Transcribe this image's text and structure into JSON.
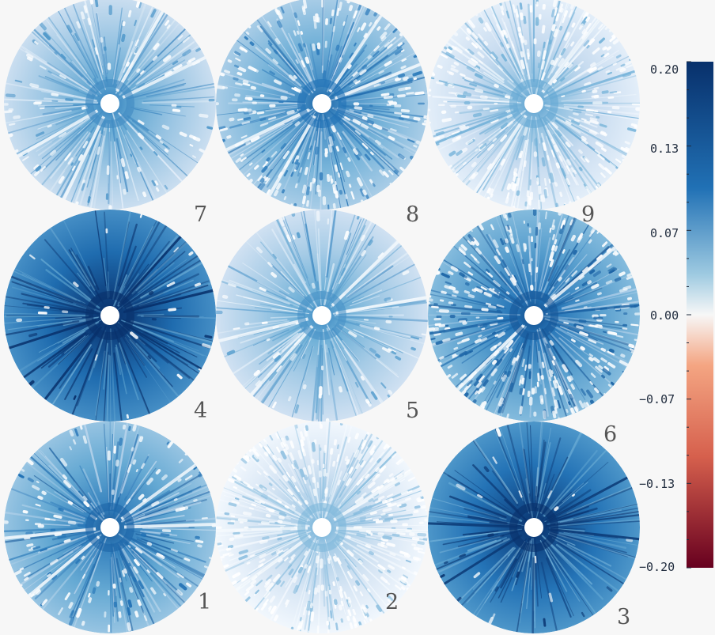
{
  "panels": [
    {
      "label": "7",
      "intensity": 0.35,
      "speckle": 0.25,
      "variant": 1
    },
    {
      "label": "8",
      "intensity": 0.45,
      "speckle": 0.6,
      "variant": 2
    },
    {
      "label": "9",
      "intensity": 0.22,
      "speckle": 0.7,
      "variant": 3
    },
    {
      "label": "4",
      "intensity": 0.75,
      "speckle": 0.05,
      "variant": 4
    },
    {
      "label": "5",
      "intensity": 0.32,
      "speckle": 0.15,
      "variant": 5
    },
    {
      "label": "6",
      "intensity": 0.55,
      "speckle": 0.75,
      "variant": 6
    },
    {
      "label": "1",
      "intensity": 0.5,
      "speckle": 0.3,
      "variant": 7
    },
    {
      "label": "2",
      "intensity": 0.15,
      "speckle": 0.85,
      "variant": 8
    },
    {
      "label": "3",
      "intensity": 0.72,
      "speckle": 0.05,
      "variant": 9
    }
  ],
  "colorbar": {
    "min": -0.2,
    "max": 0.2,
    "tick_labels": [
      "0.20",
      "0.13",
      "0.07",
      "0.00",
      "−0.07",
      "−0.13",
      "−0.20"
    ],
    "colors": {
      "top": "#08306b",
      "upper": "#2171b5",
      "mid_upper": "#9ecae1",
      "zero": "#f7f7f7",
      "mid_lower": "#f4a582",
      "lower": "#d6604d",
      "bottom": "#67001f"
    }
  }
}
